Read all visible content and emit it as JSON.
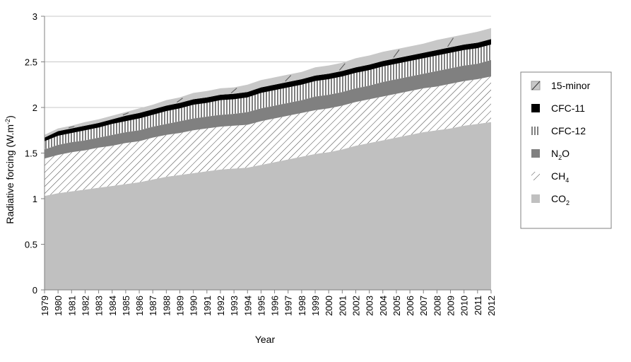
{
  "chart_data": {
    "type": "area",
    "stacked": true,
    "title": "",
    "xlabel": "Year",
    "ylabel": "Radiative forcing (W.m",
    "ylabel_sup": "-2",
    "ylabel_close": ")",
    "xlim": [
      1979,
      2012
    ],
    "ylim": [
      0,
      3
    ],
    "y_ticks": [
      0,
      0.5,
      1,
      1.5,
      2,
      2.5,
      3
    ],
    "y_tick_labels": [
      "0",
      "0.5",
      "1",
      "1.5",
      "2",
      "2.5",
      "3"
    ],
    "grid": "horizontal",
    "legend_position": "right",
    "x": [
      1979,
      1980,
      1981,
      1982,
      1983,
      1984,
      1985,
      1986,
      1987,
      1988,
      1989,
      1990,
      1991,
      1992,
      1993,
      1994,
      1995,
      1996,
      1997,
      1998,
      1999,
      2000,
      2001,
      2002,
      2003,
      2004,
      2005,
      2006,
      2007,
      2008,
      2009,
      2010,
      2011,
      2012
    ],
    "x_tick_labels": [
      "1979",
      "1980",
      "1981",
      "1982",
      "1983",
      "1984",
      "1985",
      "1986",
      "1987",
      "1988",
      "1989",
      "1990",
      "1991",
      "1992",
      "1993",
      "1994",
      "1995",
      "1996",
      "1997",
      "1998",
      "1999",
      "2000",
      "2001",
      "2002",
      "2003",
      "2004",
      "2005",
      "2006",
      "2007",
      "2008",
      "2009",
      "2010",
      "2011",
      "2012"
    ],
    "series": [
      {
        "name": "CO2",
        "legend_main": "CO",
        "legend_sub": "2",
        "pattern": "solid-light",
        "values": [
          1.03,
          1.06,
          1.08,
          1.1,
          1.12,
          1.14,
          1.16,
          1.18,
          1.21,
          1.24,
          1.26,
          1.28,
          1.3,
          1.32,
          1.33,
          1.34,
          1.37,
          1.4,
          1.43,
          1.46,
          1.49,
          1.51,
          1.54,
          1.58,
          1.61,
          1.64,
          1.67,
          1.7,
          1.73,
          1.75,
          1.77,
          1.8,
          1.82,
          1.84
        ]
      },
      {
        "name": "CH4",
        "legend_main": "CH",
        "legend_sub": "4",
        "pattern": "diagonal-hatch",
        "values": [
          0.41,
          0.42,
          0.43,
          0.43,
          0.44,
          0.44,
          0.45,
          0.45,
          0.46,
          0.46,
          0.46,
          0.47,
          0.47,
          0.47,
          0.47,
          0.47,
          0.48,
          0.48,
          0.48,
          0.48,
          0.48,
          0.48,
          0.48,
          0.48,
          0.48,
          0.48,
          0.48,
          0.48,
          0.48,
          0.48,
          0.49,
          0.49,
          0.49,
          0.5
        ]
      },
      {
        "name": "N2O",
        "legend_main": "N",
        "legend_sub": "2",
        "legend_tail": "O",
        "pattern": "solid-dark",
        "values": [
          0.1,
          0.11,
          0.11,
          0.11,
          0.11,
          0.12,
          0.12,
          0.12,
          0.12,
          0.12,
          0.13,
          0.13,
          0.13,
          0.13,
          0.13,
          0.14,
          0.14,
          0.14,
          0.14,
          0.14,
          0.15,
          0.15,
          0.15,
          0.15,
          0.15,
          0.16,
          0.16,
          0.16,
          0.16,
          0.17,
          0.17,
          0.17,
          0.17,
          0.18
        ]
      },
      {
        "name": "CFC-12",
        "legend_main": "CFC-12",
        "pattern": "vertical-hatch",
        "values": [
          0.09,
          0.1,
          0.1,
          0.11,
          0.11,
          0.12,
          0.12,
          0.13,
          0.13,
          0.14,
          0.14,
          0.15,
          0.15,
          0.16,
          0.16,
          0.16,
          0.17,
          0.17,
          0.17,
          0.17,
          0.17,
          0.17,
          0.17,
          0.17,
          0.17,
          0.17,
          0.17,
          0.17,
          0.17,
          0.17,
          0.17,
          0.17,
          0.17,
          0.17
        ]
      },
      {
        "name": "CFC-11",
        "legend_main": "CFC-11",
        "pattern": "solid-black",
        "values": [
          0.04,
          0.05,
          0.05,
          0.05,
          0.05,
          0.05,
          0.06,
          0.06,
          0.06,
          0.06,
          0.06,
          0.06,
          0.06,
          0.06,
          0.06,
          0.06,
          0.06,
          0.06,
          0.06,
          0.06,
          0.06,
          0.06,
          0.06,
          0.06,
          0.06,
          0.06,
          0.06,
          0.06,
          0.06,
          0.06,
          0.06,
          0.06,
          0.06,
          0.06
        ]
      },
      {
        "name": "15-minor",
        "legend_main": "15-minor",
        "pattern": "solid-light-slash",
        "values": [
          0.03,
          0.03,
          0.03,
          0.04,
          0.04,
          0.04,
          0.04,
          0.05,
          0.05,
          0.06,
          0.06,
          0.07,
          0.07,
          0.07,
          0.07,
          0.08,
          0.08,
          0.08,
          0.08,
          0.08,
          0.09,
          0.09,
          0.09,
          0.1,
          0.1,
          0.1,
          0.1,
          0.1,
          0.1,
          0.11,
          0.11,
          0.11,
          0.12,
          0.12
        ]
      }
    ]
  },
  "colors": {
    "co2": "#c0c0c0",
    "n2o": "#808080",
    "cfc11": "#000000",
    "minor": "#c8c8c8",
    "hatch": "#404040",
    "grid": "#c8c8c8",
    "axis": "#808080"
  }
}
